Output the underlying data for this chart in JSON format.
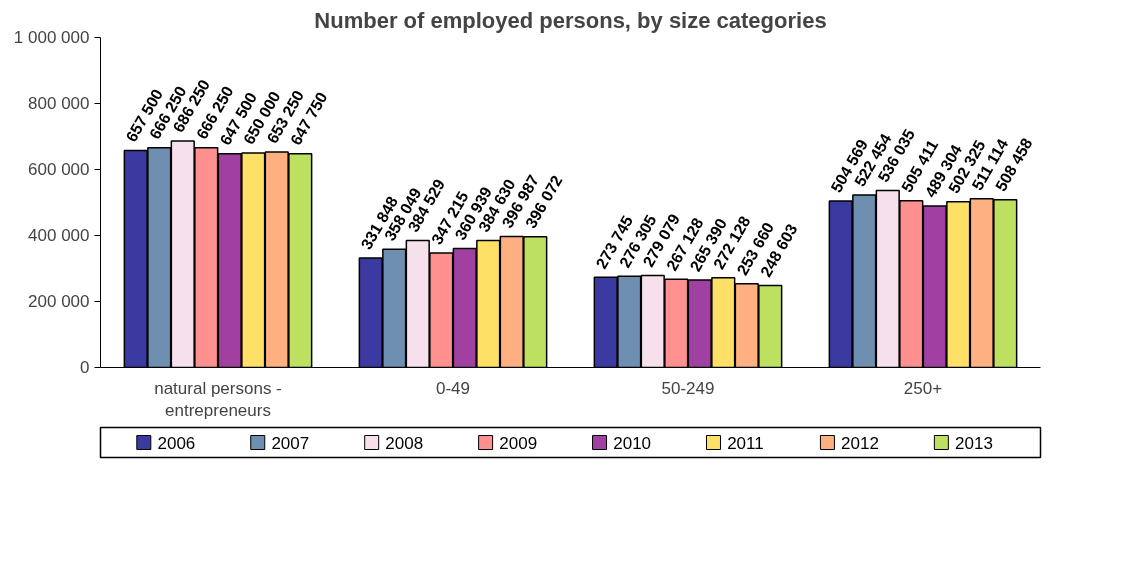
{
  "chart_data": {
    "type": "bar",
    "title": "Number of employed persons, by size categories",
    "categories": [
      "natural persons - entrepreneurs",
      "0-49",
      "50-249",
      "250+"
    ],
    "series": [
      {
        "name": "2006",
        "color": "#3a3aa0",
        "values": [
          657500,
          331848,
          273745,
          504569
        ]
      },
      {
        "name": "2007",
        "color": "#6f8fb0",
        "values": [
          666250,
          358049,
          276305,
          522454
        ]
      },
      {
        "name": "2008",
        "color": "#f5e0ec",
        "values": [
          686250,
          384529,
          279079,
          536035
        ]
      },
      {
        "name": "2009",
        "color": "#ff9090",
        "values": [
          666250,
          347215,
          267128,
          505411
        ]
      },
      {
        "name": "2010",
        "color": "#a040a0",
        "values": [
          647500,
          360939,
          265390,
          489304
        ]
      },
      {
        "name": "2011",
        "color": "#ffe066",
        "values": [
          650000,
          384630,
          272128,
          502325
        ]
      },
      {
        "name": "2012",
        "color": "#ffb080",
        "values": [
          653250,
          396987,
          253660,
          511114
        ]
      },
      {
        "name": "2013",
        "color": "#bde060",
        "values": [
          647750,
          396072,
          248603,
          508458
        ]
      }
    ],
    "ylim": [
      0,
      1000000
    ],
    "yticks": [
      0,
      {
        "value": 200000,
        "label": "200 000"
      },
      {
        "value": 400000,
        "label": "400 000"
      },
      {
        "value": 600000,
        "label": "600 000"
      },
      {
        "value": 800000,
        "label": "800 000"
      },
      {
        "value": 1000000,
        "label": "1 000 000"
      }
    ],
    "grid": false,
    "legend": "bottom",
    "data_labels": true
  }
}
